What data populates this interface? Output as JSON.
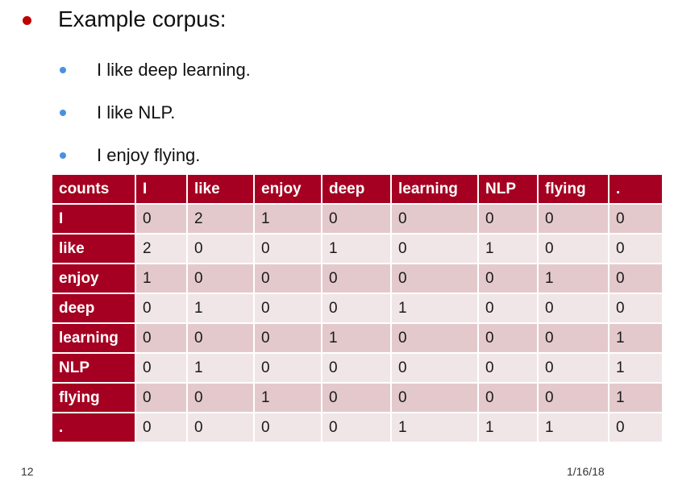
{
  "slide": {
    "title": "Example corpus:",
    "sentences": [
      "I like deep learning.",
      "I like NLP.",
      "I enjoy flying."
    ]
  },
  "table": {
    "corner": "counts",
    "columns": [
      "I",
      "like",
      "enjoy",
      "deep",
      "learning",
      "NLP",
      "flying",
      "."
    ],
    "rows": [
      {
        "label": "I",
        "values": [
          "0",
          "2",
          "1",
          "0",
          "0",
          "0",
          "0",
          "0"
        ]
      },
      {
        "label": "like",
        "values": [
          "2",
          "0",
          "0",
          "1",
          "0",
          "1",
          "0",
          "0"
        ]
      },
      {
        "label": "enjoy",
        "values": [
          "1",
          "0",
          "0",
          "0",
          "0",
          "0",
          "1",
          "0"
        ]
      },
      {
        "label": "deep",
        "values": [
          "0",
          "1",
          "0",
          "0",
          "1",
          "0",
          "0",
          "0"
        ]
      },
      {
        "label": "learning",
        "values": [
          "0",
          "0",
          "0",
          "1",
          "0",
          "0",
          "0",
          "1"
        ]
      },
      {
        "label": "NLP",
        "values": [
          "0",
          "1",
          "0",
          "0",
          "0",
          "0",
          "0",
          "1"
        ]
      },
      {
        "label": "flying",
        "values": [
          "0",
          "0",
          "1",
          "0",
          "0",
          "0",
          "0",
          "1"
        ]
      },
      {
        "label": ".",
        "values": [
          "0",
          "0",
          "0",
          "0",
          "1",
          "1",
          "1",
          "0"
        ]
      }
    ],
    "colors": {
      "header": "#a50021",
      "row_odd": "#e4c9cc",
      "row_even": "#f1e6e7"
    }
  },
  "footer": {
    "page_number": "12",
    "date": "1/16/18"
  }
}
